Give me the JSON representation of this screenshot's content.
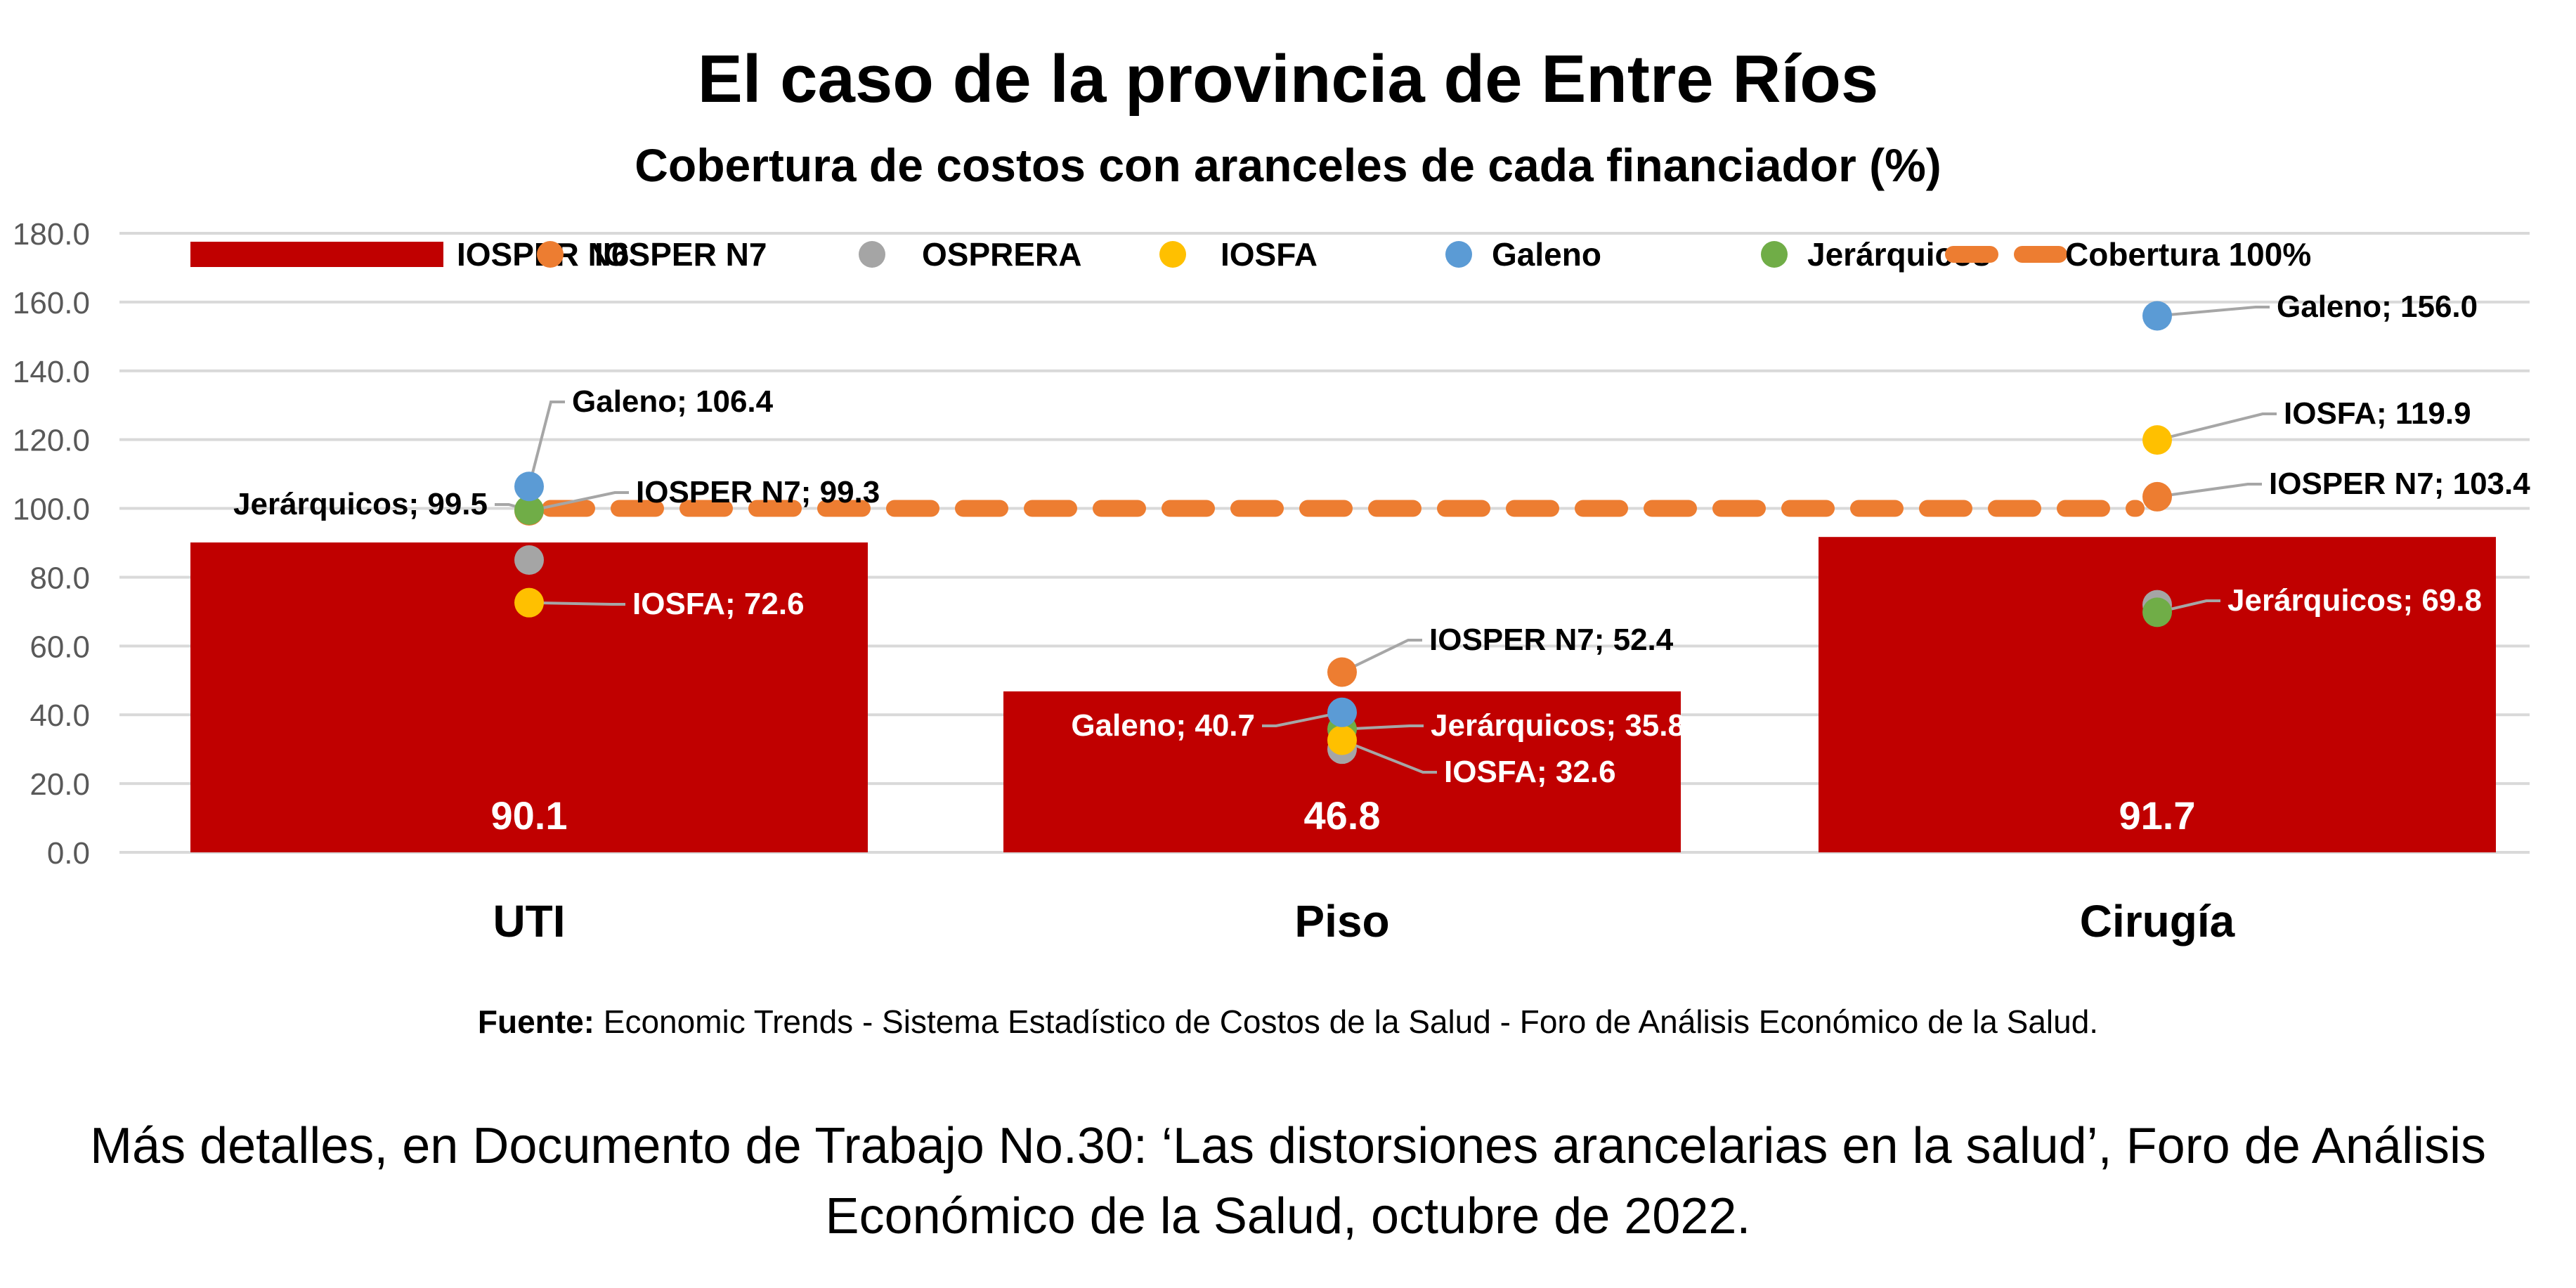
{
  "chart_data": {
    "type": "bar",
    "title": "El caso de la provincia de Entre Ríos",
    "subtitle": "Cobertura de costos con aranceles de cada financiador (%)",
    "xlabel": "",
    "ylabel": "",
    "ylim": [
      0,
      180
    ],
    "yticks": [
      "0.0",
      "20.0",
      "40.0",
      "60.0",
      "80.0",
      "100.0",
      "120.0",
      "140.0",
      "160.0",
      "180.0"
    ],
    "grid": true,
    "legend_position": "top",
    "categories": [
      "UTI",
      "Piso",
      "Cirugía"
    ],
    "bar_series": {
      "name": "IOSPER N6",
      "color": "#c00000",
      "values": [
        90.1,
        46.8,
        91.7
      ],
      "labels": [
        "90.1",
        "46.8",
        "91.7"
      ]
    },
    "point_series": [
      {
        "name": "IOSPER N7",
        "color": "#ed7d31",
        "values": [
          99.3,
          52.4,
          103.4
        ],
        "labels": [
          "IOSPER N7; 99.3",
          "IOSPER N7; 52.4",
          "IOSPER N7; 103.4"
        ]
      },
      {
        "name": "OSPRERA",
        "color": "#a5a5a5",
        "values": [
          85.0,
          30.0,
          72.0
        ],
        "labels": [
          null,
          null,
          null
        ]
      },
      {
        "name": "IOSFA",
        "color": "#ffc000",
        "values": [
          72.6,
          32.6,
          119.9
        ],
        "labels": [
          "IOSFA; 72.6",
          "IOSFA; 32.6",
          "IOSFA; 119.9"
        ]
      },
      {
        "name": "Galeno",
        "color": "#5b9bd5",
        "values": [
          106.4,
          40.7,
          156.0
        ],
        "labels": [
          "Galeno; 106.4",
          "Galeno; 40.7",
          "Galeno; 156.0"
        ]
      },
      {
        "name": "Jerárquicos",
        "color": "#70ad47",
        "values": [
          99.5,
          35.8,
          69.8
        ],
        "labels": [
          "Jerárquicos; 99.5",
          "Jerárquicos; 35.8",
          "Jerárquicos; 69.8"
        ]
      }
    ],
    "reference_line": {
      "name": "Cobertura 100%",
      "color": "#ed7d31",
      "value": 100
    }
  },
  "source": {
    "label": "Fuente:",
    "text": " Economic Trends - Sistema Estadístico de Costos de la Salud - Foro de Análisis Económico de la Salud."
  },
  "footer": {
    "line1": "Más detalles, en Documento de Trabajo No.30: ‘Las distorsiones arancelarias en la salud’, Foro de Análisis",
    "line2": "Económico de la Salud, octubre de 2022."
  }
}
